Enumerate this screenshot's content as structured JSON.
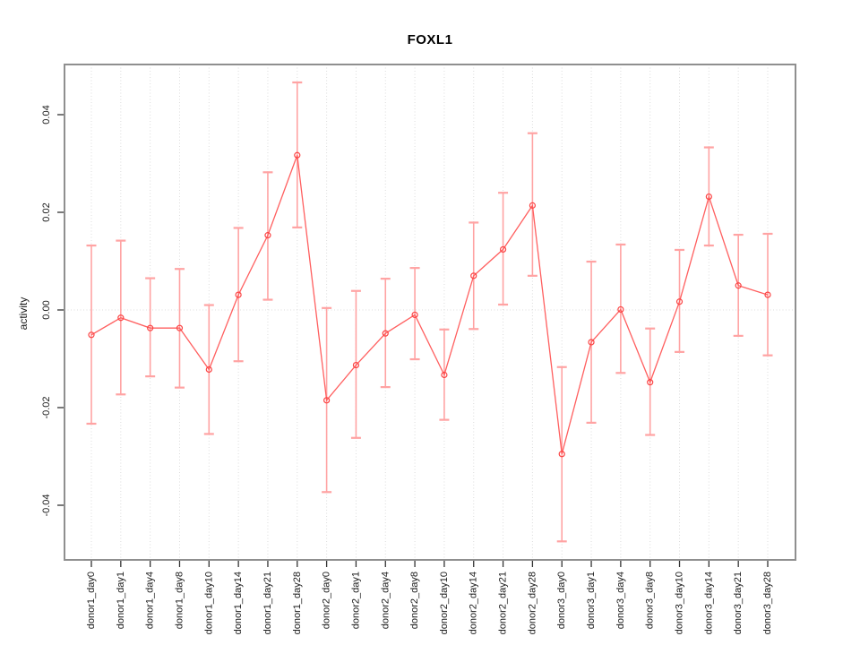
{
  "figure": {
    "title": "FOXL1",
    "y_axis_label": "activity"
  },
  "chart_data": {
    "type": "line",
    "title": "FOXL1",
    "xlabel": "",
    "ylabel": "activity",
    "legend": "none",
    "ylim": [
      -0.0512,
      0.0503
    ],
    "grid": {
      "vertical": "dotted line at every category",
      "horizontal": "dotted line at y=0 only"
    },
    "y_ticks": [
      {
        "value": -0.04,
        "label": "-0.04"
      },
      {
        "value": -0.02,
        "label": "-0.02"
      },
      {
        "value": 0.0,
        "label": "0.00"
      },
      {
        "value": 0.02,
        "label": "0.02"
      },
      {
        "value": 0.04,
        "label": "0.04"
      }
    ],
    "categories": [
      "donor1_day0",
      "donor1_day1",
      "donor1_day4",
      "donor1_day8",
      "donor1_day10",
      "donor1_day14",
      "donor1_day21",
      "donor1_day28",
      "donor2_day0",
      "donor2_day1",
      "donor2_day4",
      "donor2_day8",
      "donor2_day10",
      "donor2_day14",
      "donor2_day21",
      "donor2_day28",
      "donor3_day0",
      "donor3_day1",
      "donor3_day4",
      "donor3_day8",
      "donor3_day10",
      "donor3_day14",
      "donor3_day21",
      "donor3_day28"
    ],
    "series": [
      {
        "name": "FOXL1 activity",
        "marker": "open-circle",
        "values": [
          -0.0051,
          -0.0016,
          -0.0037,
          -0.0037,
          -0.0122,
          0.0031,
          0.0153,
          0.0317,
          -0.0185,
          -0.0113,
          -0.0048,
          -0.001,
          -0.0133,
          0.007,
          0.0124,
          0.0214,
          -0.0295,
          -0.0066,
          0.0001,
          -0.0148,
          0.0017,
          0.0232,
          0.005,
          0.0031
        ],
        "error_upper": [
          0.0132,
          0.0142,
          0.0065,
          0.0084,
          0.001,
          0.0168,
          0.0282,
          0.0466,
          0.0004,
          0.0039,
          0.0064,
          0.0086,
          -0.004,
          0.0179,
          0.024,
          0.0362,
          -0.0117,
          0.0099,
          0.0134,
          -0.0038,
          0.0123,
          0.0333,
          0.0154,
          0.0156
        ],
        "error_lower": [
          -0.0233,
          -0.0173,
          -0.0136,
          -0.0159,
          -0.0254,
          -0.0105,
          0.0021,
          0.0169,
          -0.0373,
          -0.0262,
          -0.0158,
          -0.0101,
          -0.0225,
          -0.0039,
          0.0011,
          0.007,
          -0.0474,
          -0.0231,
          -0.0129,
          -0.0256,
          -0.0086,
          0.0132,
          -0.0053,
          -0.0093
        ]
      }
    ],
    "colors": {
      "line": "#ff5f5f",
      "marker": "#fb4545",
      "error_bar": "#ffa3a3",
      "grid": "#dcdcdc",
      "frame": "#8f8f8f",
      "tick": "#333333"
    }
  }
}
